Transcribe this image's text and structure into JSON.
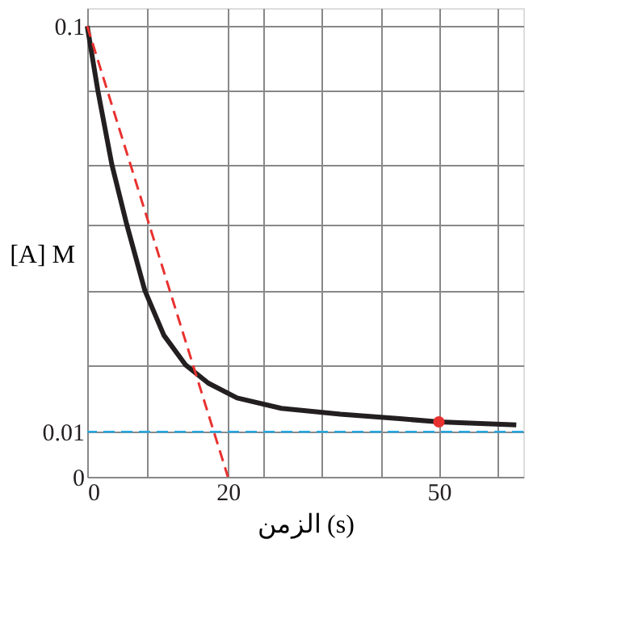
{
  "chart_data": {
    "type": "line",
    "xlabel": "الزمن (s)",
    "ylabel": "[A] M",
    "x": [
      0,
      1.5,
      3.5,
      5.6,
      8.2,
      10.9,
      14,
      17.2,
      21.3,
      27.6,
      36,
      44.4,
      50,
      61
    ],
    "series": [
      {
        "color": "#231f20",
        "values": [
          0.1,
          0.0858,
          0.0693,
          0.0561,
          0.0413,
          0.0314,
          0.0248,
          0.0208,
          0.0175,
          0.0152,
          0.0139,
          0.0129,
          0.0122,
          0.0115
        ],
        "line_style": "solid"
      },
      {
        "type": "line",
        "x": [
          0,
          20
        ],
        "color": "#e8312f",
        "values": [
          0.1,
          0
        ],
        "line_style": "dashed"
      },
      {
        "type": "scatter",
        "x": [
          50
        ],
        "color": "#e8312f",
        "values": [
          0.0122
        ],
        "marker": "circle"
      }
    ],
    "ref_lines": [
      {
        "axis": "y",
        "value": 0.01,
        "color": "#29a8e0",
        "line_style": "dashed"
      }
    ],
    "xlim": [
      0,
      62
    ],
    "ylim": [
      0,
      0.104
    ],
    "xticks": [
      0,
      {
        "value": 8.4,
        "label": null
      },
      20,
      {
        "value": 25,
        "label": null
      },
      {
        "value": 33.4,
        "label": null
      },
      {
        "value": 41.8,
        "label": null
      },
      50,
      {
        "value": 58.4,
        "label": null
      }
    ],
    "yticks": [
      0,
      0.01,
      {
        "value": 0.0248,
        "label": null
      },
      {
        "value": 0.0413,
        "label": null
      },
      {
        "value": 0.0561,
        "label": null
      },
      {
        "value": 0.0693,
        "label": null
      },
      {
        "value": 0.0858,
        "label": null
      },
      0.1
    ],
    "grid": true
  }
}
